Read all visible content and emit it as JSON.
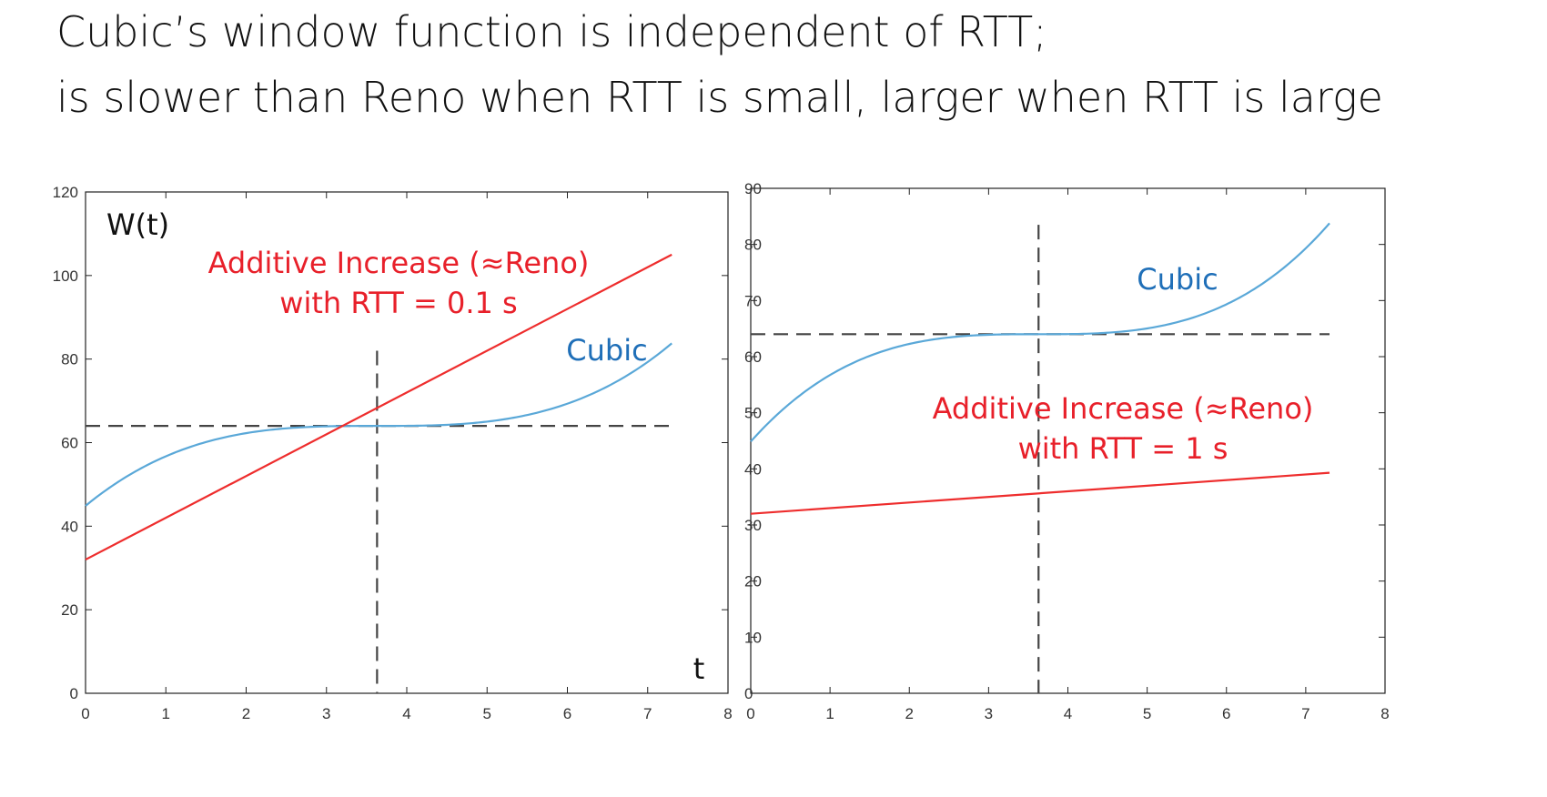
{
  "title": {
    "line1": "Cubic’s window function is independent of RTT;",
    "line2": "is slower than Reno when RTT is small, larger when RTT is large"
  },
  "colors": {
    "cubic": "#5aa8d8",
    "reno": "#ee2d2d",
    "dashed": "#444444",
    "cubic_text": "#1f6fb8",
    "reno_text": "#e8202a"
  },
  "chart_data": [
    {
      "type": "line",
      "xlim": [
        0,
        8
      ],
      "ylim": [
        0,
        120
      ],
      "xticks": [
        "0",
        "1",
        "2",
        "3",
        "4",
        "5",
        "6",
        "7",
        "8"
      ],
      "yticks": [
        "0",
        "20",
        "40",
        "60",
        "80",
        "100",
        "120"
      ],
      "grid": false,
      "annotations": {
        "ylabel": "W(t)",
        "xlabel": "t",
        "reno_line1": "Additive Increase (≈Reno)",
        "reno_line2": "with RTT = 0.1 s",
        "cubic": "Cubic"
      },
      "series": [
        {
          "name": "Cubic",
          "function": "cubic",
          "wmax": 64,
          "k": 3.63,
          "c": 0.4,
          "x_range": [
            0,
            7.3
          ]
        },
        {
          "name": "Additive Increase (≈Reno)",
          "function": "linear",
          "x": [
            0,
            7.3
          ],
          "y": [
            32,
            105
          ]
        }
      ],
      "reference_lines": {
        "horizontal_y": 64,
        "vertical_x": 3.63
      }
    },
    {
      "type": "line",
      "xlim": [
        0,
        8
      ],
      "ylim": [
        0,
        90
      ],
      "xticks": [
        "0",
        "1",
        "2",
        "3",
        "4",
        "5",
        "6",
        "7",
        "8"
      ],
      "yticks": [
        "0",
        "10",
        "20",
        "30",
        "40",
        "50",
        "60",
        "70",
        "80",
        "90"
      ],
      "grid": false,
      "annotations": {
        "reno_line1": "Additive Increase (≈Reno)",
        "reno_line2": "with RTT = 1 s",
        "cubic": "Cubic"
      },
      "series": [
        {
          "name": "Cubic",
          "function": "cubic",
          "wmax": 64,
          "k": 3.63,
          "c": 0.4,
          "x_range": [
            0,
            7.3
          ]
        },
        {
          "name": "Additive Increase (≈Reno)",
          "function": "linear",
          "x": [
            0,
            7.3
          ],
          "y": [
            32,
            39.3
          ]
        }
      ],
      "reference_lines": {
        "horizontal_y": 64,
        "vertical_x": 3.63
      }
    }
  ]
}
